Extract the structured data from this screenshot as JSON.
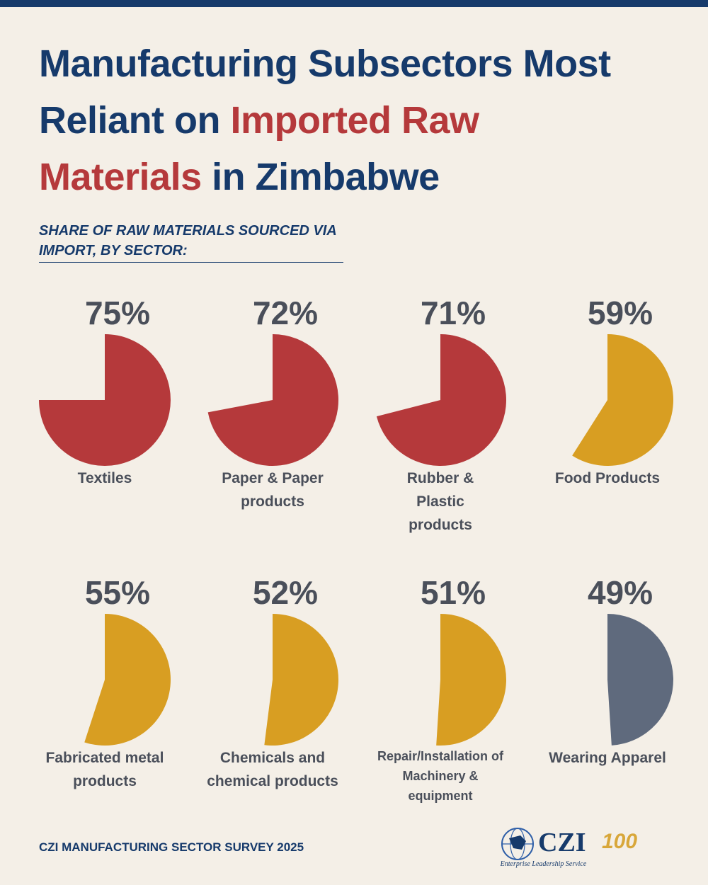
{
  "chart_data": {
    "type": "sector",
    "title": [
      "Manufacturing Subsectors Most Reliant on ",
      "Imported Raw Materials",
      " in Zimbabwe"
    ],
    "title_colors": [
      "#163a6b",
      "#b5393b",
      "#163a6b"
    ],
    "subtitle": "SHARE OF RAW MATERIALS SOURCED VIA IMPORT, BY SECTOR:",
    "categories": [
      "Textiles",
      "Paper & Paper products",
      "Rubber & Plastic products",
      "Food Products",
      "Fabricated metal products",
      "Chemicals and chemical products",
      "Repair/Installation of Machinery & equipment",
      "Wearing Apparel"
    ],
    "values": [
      75,
      72,
      71,
      59,
      55,
      52,
      51,
      49
    ],
    "value_labels": [
      "75%",
      "72%",
      "71%",
      "59%",
      "55%",
      "52%",
      "51%",
      "49%"
    ],
    "colors": [
      "#b5393b",
      "#b5393b",
      "#b5393b",
      "#d89e22",
      "#d89e22",
      "#d89e22",
      "#d89e22",
      "#5f6a7d"
    ],
    "source": "CZI MANUFACTURING SECTOR SURVEY 2025",
    "logo": {
      "name": "CZI",
      "tagline": "Enterprise Leadership Service",
      "anniversary": "100"
    }
  }
}
